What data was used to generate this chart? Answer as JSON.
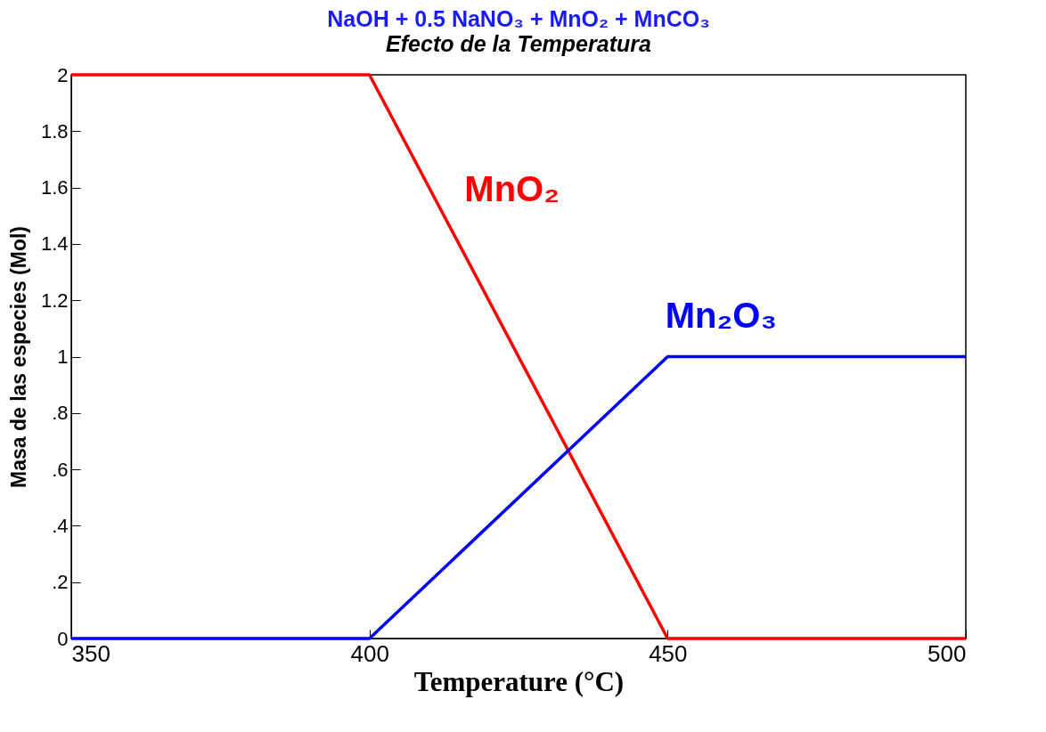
{
  "chart_data": {
    "type": "line",
    "title": "NaOH +  0.5 NaNO₃ +  MnO₂ +  MnCO₃",
    "subtitle": "Efecto de la Temperatura",
    "xlabel": "Temperature (°C)",
    "ylabel": "Masa de las especies (Mol)",
    "x": [
      350,
      400,
      450,
      500
    ],
    "series": [
      {
        "name": "MnO₂",
        "color": "#ff0000",
        "values": [
          2,
          2,
          0,
          0
        ]
      },
      {
        "name": "Mn₂O₃",
        "color": "#0000ff",
        "values": [
          0,
          0,
          1,
          1
        ]
      }
    ],
    "xlim": [
      350,
      500
    ],
    "xticks": [
      350,
      400,
      450,
      500
    ],
    "ylim": [
      0,
      2
    ],
    "yticks": [
      0,
      {
        "value": 0.2,
        "label": ".2"
      },
      {
        "value": 0.4,
        "label": ".4"
      },
      {
        "value": 0.6,
        "label": ".6"
      },
      {
        "value": 0.8,
        "label": ".8"
      },
      1,
      1.2,
      1.4,
      1.6,
      1.8,
      2
    ],
    "grid": false,
    "legend": false,
    "marker": "none",
    "line_style": "solid"
  }
}
